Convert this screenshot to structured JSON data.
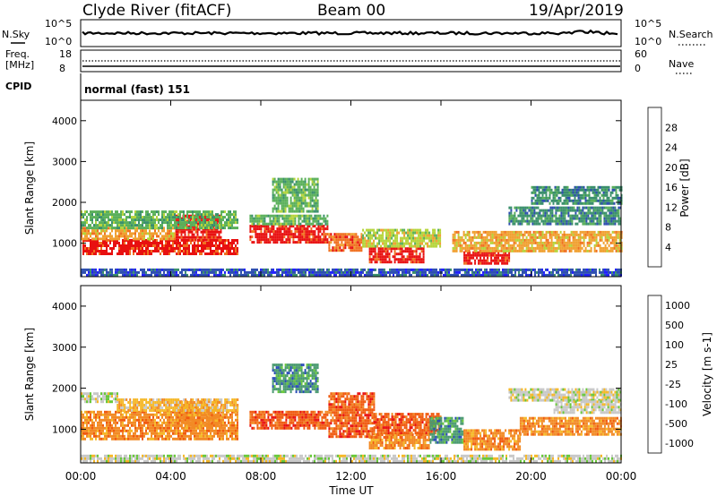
{
  "header": {
    "station": "Clyde River (fitACF)",
    "beam": "Beam 00",
    "date": "19/Apr/2019"
  },
  "noise_panel": {
    "left_label": "N.Sky",
    "right_label": "N.Search",
    "left_ticks": [
      "10^5",
      "10^0"
    ],
    "right_ticks": [
      "10^5",
      "10^0"
    ]
  },
  "freq_panel": {
    "left_label_1": "Freq.",
    "left_label_2": "[MHz]",
    "right_label": "Nave",
    "left_ticks": [
      "18",
      "8"
    ],
    "right_ticks": [
      "60",
      "0"
    ]
  },
  "cpid_panel": {
    "label": "CPID",
    "value": "normal (fast) 151"
  },
  "colors": {
    "power_scale": [
      "#2121ff",
      "#2e4fb0",
      "#3a8f6c",
      "#5ab05a",
      "#b5d43a",
      "#f0a030",
      "#f07020",
      "#e81010"
    ],
    "velocity_scale": [
      "#e81010",
      "#f05a10",
      "#f28a25",
      "#f5b828",
      "#c8c8c8",
      "#68c83a",
      "#4a9a70",
      "#2a4cb8"
    ],
    "ground_scatter": "#c8c8c8"
  },
  "chart_data": [
    {
      "type": "heatmap",
      "name": "power",
      "ylabel": "Slant Range [km]",
      "colorbar_label": "Power [dB]",
      "colorbar_ticks": [
        "4",
        "8",
        "12",
        "16",
        "20",
        "24",
        "28"
      ],
      "yticks": [
        "1000",
        "2000",
        "3000",
        "4000"
      ],
      "ylim": [
        180,
        4500
      ],
      "xlim_hours": [
        0,
        24
      ],
      "bands": [
        {
          "x0": 0.0,
          "x1": 7.0,
          "y0": 760,
          "y1": 1100,
          "level": 7
        },
        {
          "x0": 4.2,
          "x1": 6.2,
          "y0": 1100,
          "y1": 1700,
          "level": 7
        },
        {
          "x0": 0.0,
          "x1": 4.2,
          "y0": 1100,
          "y1": 1400,
          "level": 5
        },
        {
          "x0": 0.0,
          "x1": 7.0,
          "y0": 1400,
          "y1": 1800,
          "level": 3
        },
        {
          "x0": 7.5,
          "x1": 11.0,
          "y0": 1000,
          "y1": 1450,
          "level": 7
        },
        {
          "x0": 7.5,
          "x1": 11.0,
          "y0": 1450,
          "y1": 1700,
          "level": 3
        },
        {
          "x0": 11.0,
          "x1": 12.5,
          "y0": 850,
          "y1": 1250,
          "level": 6
        },
        {
          "x0": 12.8,
          "x1": 15.2,
          "y0": 520,
          "y1": 900,
          "level": 7
        },
        {
          "x0": 12.5,
          "x1": 16.0,
          "y0": 900,
          "y1": 1350,
          "level": 4
        },
        {
          "x0": 17.0,
          "x1": 19.0,
          "y0": 500,
          "y1": 800,
          "level": 7
        },
        {
          "x0": 16.5,
          "x1": 24.0,
          "y0": 800,
          "y1": 1300,
          "level": 5
        },
        {
          "x0": 19.0,
          "x1": 24.0,
          "y0": 1500,
          "y1": 1900,
          "level": 2
        },
        {
          "x0": 20.0,
          "x1": 24.0,
          "y0": 2000,
          "y1": 2400,
          "level": 2
        },
        {
          "x0": 8.5,
          "x1": 10.5,
          "y0": 1800,
          "y1": 2600,
          "level": 3
        },
        {
          "x0": 0.0,
          "x1": 24.0,
          "y0": 200,
          "y1": 380,
          "level": 1
        }
      ]
    },
    {
      "type": "heatmap",
      "name": "velocity",
      "ylabel": "Slant Range [km]",
      "colorbar_label": "Velocity [m s-1]",
      "colorbar_ticks": [
        "1000",
        "500",
        "100",
        "25",
        "-25",
        "-100",
        "-500",
        "-1000"
      ],
      "yticks": [
        "1000",
        "2000",
        "3000",
        "4000"
      ],
      "xticks": [
        "00:00",
        "04:00",
        "08:00",
        "12:00",
        "16:00",
        "20:00",
        "00:00"
      ],
      "xlabel": "Time UT",
      "ylim": [
        180,
        4500
      ],
      "xlim_hours": [
        0,
        24
      ],
      "bands": [
        {
          "x0": 0.0,
          "x1": 7.0,
          "y0": 760,
          "y1": 1450,
          "level": 2
        },
        {
          "x0": 4.2,
          "x1": 6.2,
          "y0": 1100,
          "y1": 1700,
          "level": 2
        },
        {
          "x0": 0.0,
          "x1": 1.6,
          "y0": 1650,
          "y1": 1900,
          "level": 4
        },
        {
          "x0": 1.6,
          "x1": 7.0,
          "y0": 1450,
          "y1": 1750,
          "level": 3
        },
        {
          "x0": 7.5,
          "x1": 11.0,
          "y0": 1000,
          "y1": 1450,
          "level": 1
        },
        {
          "x0": 11.0,
          "x1": 13.0,
          "y0": 800,
          "y1": 1900,
          "level": 1
        },
        {
          "x0": 12.8,
          "x1": 15.5,
          "y0": 520,
          "y1": 900,
          "level": 2
        },
        {
          "x0": 13.0,
          "x1": 16.0,
          "y0": 900,
          "y1": 1400,
          "level": 1
        },
        {
          "x0": 15.5,
          "x1": 17.0,
          "y0": 700,
          "y1": 1300,
          "level": 6
        },
        {
          "x0": 17.0,
          "x1": 19.5,
          "y0": 500,
          "y1": 1000,
          "level": 2
        },
        {
          "x0": 19.5,
          "x1": 24.0,
          "y0": 850,
          "y1": 1300,
          "level": 2
        },
        {
          "x0": 19.0,
          "x1": 24.0,
          "y0": 1700,
          "y1": 2000,
          "level": 4
        },
        {
          "x0": 21.0,
          "x1": 24.0,
          "y0": 1400,
          "y1": 1700,
          "level": 4
        },
        {
          "x0": 8.5,
          "x1": 10.5,
          "y0": 1900,
          "y1": 2600,
          "level": 6
        },
        {
          "x0": 0.0,
          "x1": 24.0,
          "y0": 200,
          "y1": 380,
          "level": 4
        }
      ]
    }
  ]
}
